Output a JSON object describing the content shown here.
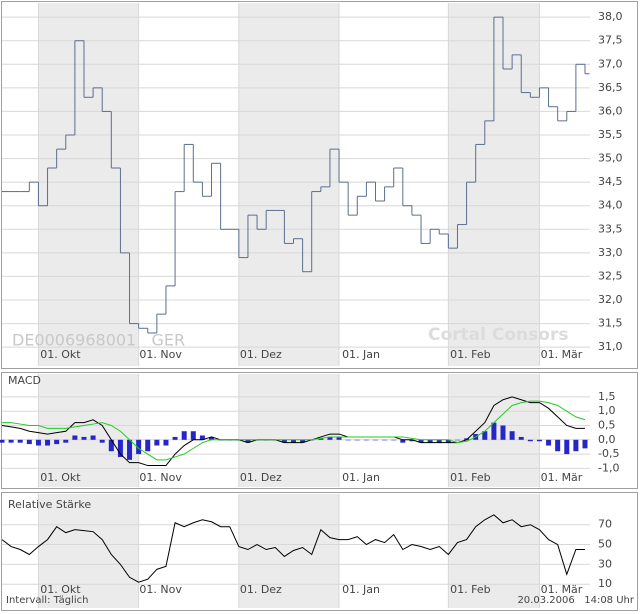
{
  "chart_data": [
    {
      "type": "step",
      "annotations": [
        "DE0006968001   GER",
        "Cortal Consors"
      ],
      "categories": [
        null,
        null,
        null,
        null,
        "01. Okt",
        null,
        null,
        null,
        null,
        null,
        null,
        null,
        null,
        null,
        null,
        "01. Nov",
        null,
        null,
        null,
        null,
        null,
        null,
        null,
        null,
        null,
        null,
        "01. Dez",
        null,
        null,
        null,
        null,
        null,
        null,
        null,
        null,
        null,
        null,
        "01. Jan",
        null,
        null,
        null,
        null,
        null,
        null,
        null,
        null,
        null,
        null,
        null,
        "01. Feb",
        null,
        null,
        null,
        null,
        null,
        null,
        null,
        null,
        null,
        "01. Mär",
        null,
        null,
        null,
        null,
        null
      ],
      "series": [
        {
          "color": "#5b6e8f",
          "values": [
            34.3,
            34.3,
            34.3,
            34.5,
            34.0,
            34.8,
            35.2,
            35.5,
            37.5,
            36.3,
            36.5,
            36.0,
            34.8,
            33.0,
            31.5,
            31.4,
            31.3,
            31.7,
            32.3,
            34.3,
            35.3,
            34.5,
            34.2,
            34.9,
            33.5,
            33.5,
            32.9,
            33.8,
            33.5,
            33.9,
            33.9,
            33.2,
            33.3,
            32.6,
            34.3,
            34.4,
            35.2,
            34.5,
            33.8,
            34.2,
            34.5,
            34.1,
            34.4,
            34.8,
            34.0,
            33.8,
            33.2,
            33.5,
            33.4,
            33.1,
            33.6,
            34.5,
            35.3,
            35.8,
            38.0,
            36.9,
            37.2,
            36.4,
            36.3,
            36.5,
            36.1,
            35.8,
            36.0,
            37.0,
            36.8
          ]
        }
      ],
      "ylim": [
        30.6,
        38.3
      ],
      "yticks": [
        {
          "value": 31.0,
          "label": "31,0"
        },
        {
          "value": 31.5,
          "label": "31,5"
        },
        {
          "value": 32.0,
          "label": "32,0"
        },
        {
          "value": 32.5,
          "label": "32,5"
        },
        {
          "value": 33.0,
          "label": "33,0"
        },
        {
          "value": 33.5,
          "label": "33,5"
        },
        {
          "value": 34.0,
          "label": "34,0"
        },
        {
          "value": 34.5,
          "label": "34,5"
        },
        {
          "value": 35.0,
          "label": "35,0"
        },
        {
          "value": 35.5,
          "label": "35,5"
        },
        {
          "value": 36.0,
          "label": "36,0"
        },
        {
          "value": 36.5,
          "label": "36,5"
        },
        {
          "value": 37.0,
          "label": "37,0"
        },
        {
          "value": 37.5,
          "label": "37,5"
        },
        {
          "value": 38.0,
          "label": "38,0"
        }
      ],
      "grid": true
    },
    {
      "type": "line",
      "title": "MACD",
      "categories": [
        null,
        null,
        null,
        null,
        "01. Okt",
        null,
        null,
        null,
        null,
        null,
        null,
        null,
        null,
        null,
        null,
        "01. Nov",
        null,
        null,
        null,
        null,
        null,
        null,
        null,
        null,
        null,
        null,
        "01. Dez",
        null,
        null,
        null,
        null,
        null,
        null,
        null,
        null,
        null,
        null,
        "01. Jan",
        null,
        null,
        null,
        null,
        null,
        null,
        null,
        null,
        null,
        null,
        null,
        "01. Feb",
        null,
        null,
        null,
        null,
        null,
        null,
        null,
        null,
        null,
        "01. Mär",
        null,
        null,
        null,
        null,
        null
      ],
      "series": [
        {
          "type": "bar",
          "color": "#2626c8",
          "values": [
            -0.1,
            -0.1,
            -0.1,
            -0.15,
            -0.2,
            -0.2,
            -0.15,
            -0.1,
            0.15,
            0.1,
            0.15,
            -0.1,
            -0.4,
            -0.6,
            -0.7,
            -0.5,
            -0.4,
            -0.2,
            -0.2,
            0.1,
            0.3,
            0.3,
            0.15,
            0.1,
            0.0,
            0.0,
            0.0,
            -0.1,
            0.0,
            0.0,
            0.0,
            -0.1,
            -0.1,
            -0.1,
            0.0,
            0.05,
            0.1,
            0.1,
            0.0,
            0.0,
            0.0,
            0.0,
            0.0,
            0.0,
            -0.1,
            -0.05,
            -0.1,
            -0.1,
            -0.1,
            -0.1,
            0.0,
            0.05,
            0.2,
            0.3,
            0.6,
            0.5,
            0.3,
            0.1,
            -0.05,
            -0.05,
            -0.2,
            -0.4,
            -0.5,
            -0.4,
            -0.3
          ]
        },
        {
          "type": "line",
          "color": "#000000",
          "values": [
            0.5,
            0.45,
            0.4,
            0.3,
            0.25,
            0.2,
            0.25,
            0.3,
            0.6,
            0.6,
            0.7,
            0.5,
            0.0,
            -0.5,
            -0.8,
            -0.8,
            -0.9,
            -0.9,
            -0.9,
            -0.5,
            -0.2,
            0.0,
            0.0,
            0.1,
            0.0,
            0.0,
            0.0,
            -0.1,
            0.0,
            0.0,
            0.0,
            -0.1,
            -0.1,
            -0.1,
            0.0,
            0.1,
            0.2,
            0.2,
            0.1,
            0.1,
            0.1,
            0.1,
            0.1,
            0.1,
            0.0,
            0.0,
            -0.1,
            -0.1,
            -0.1,
            -0.1,
            -0.1,
            0.0,
            0.3,
            0.6,
            1.2,
            1.4,
            1.5,
            1.4,
            1.3,
            1.3,
            1.1,
            0.8,
            0.5,
            0.4,
            0.4
          ]
        },
        {
          "type": "line",
          "color": "#22cc22",
          "values": [
            0.6,
            0.6,
            0.55,
            0.5,
            0.5,
            0.4,
            0.4,
            0.4,
            0.45,
            0.5,
            0.55,
            0.6,
            0.5,
            0.3,
            0.0,
            -0.3,
            -0.5,
            -0.7,
            -0.7,
            -0.6,
            -0.5,
            -0.3,
            -0.1,
            0.0,
            0.0,
            0.0,
            0.0,
            0.0,
            0.0,
            0.0,
            0.0,
            0.0,
            0.0,
            0.0,
            0.0,
            0.05,
            0.1,
            0.1,
            0.1,
            0.1,
            0.1,
            0.1,
            0.1,
            0.1,
            0.1,
            0.05,
            0.0,
            0.0,
            0.0,
            0.0,
            -0.1,
            -0.05,
            0.1,
            0.3,
            0.6,
            0.9,
            1.2,
            1.3,
            1.35,
            1.35,
            1.3,
            1.2,
            1.0,
            0.8,
            0.7
          ]
        }
      ],
      "ylim": [
        -1.65,
        2.3
      ],
      "yticks": [
        {
          "value": -1.0,
          "label": "-1,0"
        },
        {
          "value": -0.5,
          "label": "-0,5"
        },
        {
          "value": 0.0,
          "label": "0,0"
        },
        {
          "value": 0.5,
          "label": "0,5"
        },
        {
          "value": 1.0,
          "label": "1,0"
        },
        {
          "value": 1.5,
          "label": "1,5"
        }
      ],
      "grid": true
    },
    {
      "type": "line",
      "title": "Relative Stärke",
      "categories": [
        null,
        null,
        null,
        null,
        "01. Okt",
        null,
        null,
        null,
        null,
        null,
        null,
        null,
        null,
        null,
        null,
        "01. Nov",
        null,
        null,
        null,
        null,
        null,
        null,
        null,
        null,
        null,
        null,
        "01. Dez",
        null,
        null,
        null,
        null,
        null,
        null,
        null,
        null,
        null,
        null,
        "01. Jan",
        null,
        null,
        null,
        null,
        null,
        null,
        null,
        null,
        null,
        null,
        null,
        "01. Feb",
        null,
        null,
        null,
        null,
        null,
        null,
        null,
        null,
        null,
        "01. Mär",
        null,
        null,
        null,
        null,
        null
      ],
      "series": [
        {
          "color": "#000000",
          "values": [
            55,
            48,
            45,
            40,
            48,
            55,
            68,
            62,
            65,
            64,
            63,
            55,
            40,
            30,
            17,
            12,
            15,
            25,
            28,
            72,
            68,
            72,
            75,
            73,
            68,
            68,
            48,
            45,
            50,
            45,
            47,
            38,
            44,
            47,
            40,
            65,
            57,
            55,
            55,
            58,
            50,
            55,
            52,
            60,
            45,
            50,
            48,
            45,
            48,
            40,
            52,
            55,
            68,
            75,
            80,
            72,
            75,
            68,
            70,
            65,
            55,
            50,
            20,
            45,
            45
          ]
        }
      ],
      "ylim": [
        -14,
        101
      ],
      "yticks": [
        10,
        30,
        50,
        70
      ],
      "grid": true
    }
  ],
  "footer": {
    "interval": "Intervall: Täglich",
    "timestamp": "20.03.2006   14:08 Uhr"
  }
}
